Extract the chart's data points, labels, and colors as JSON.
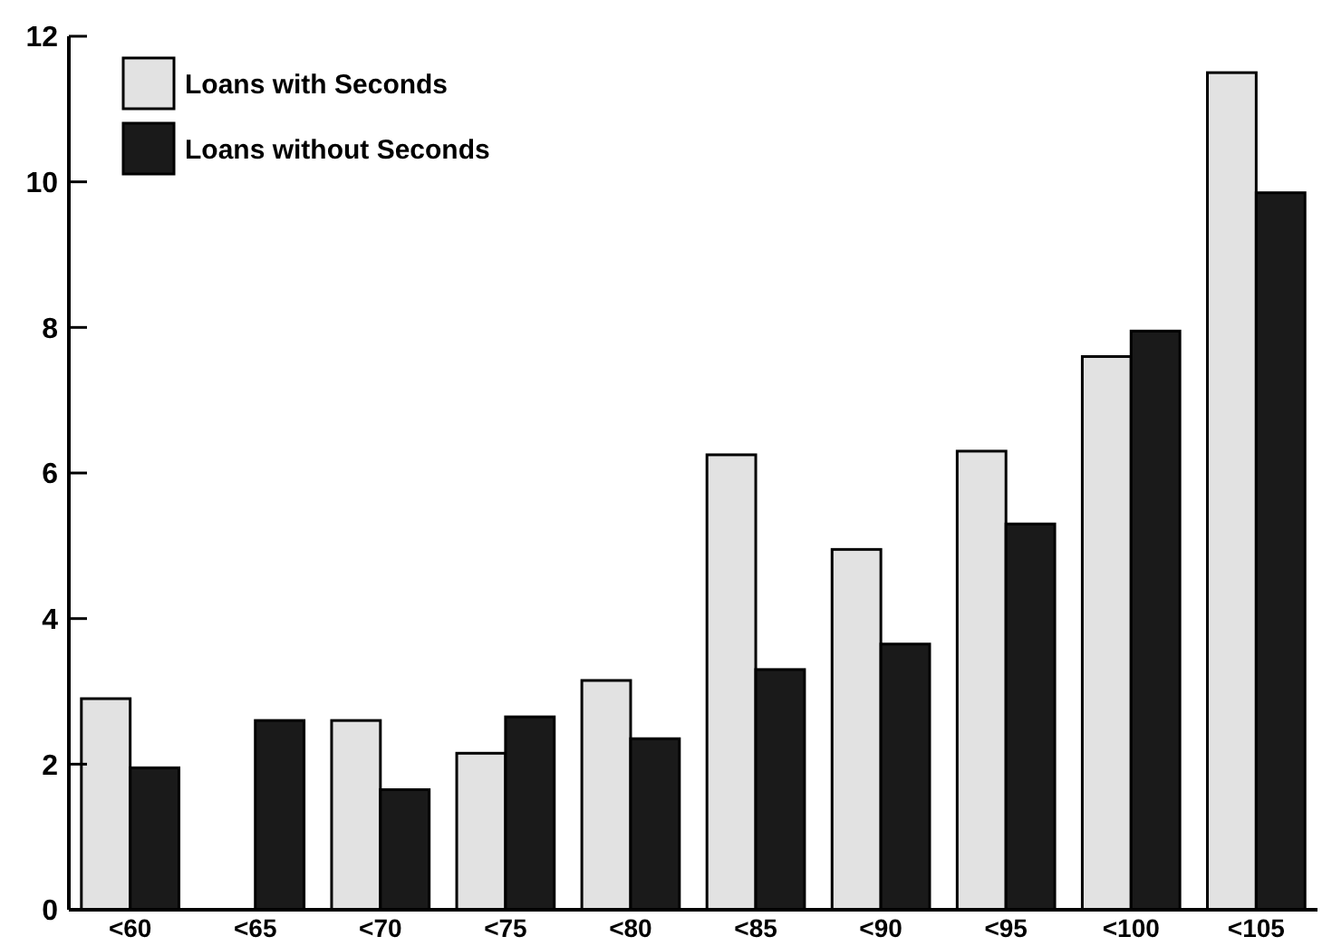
{
  "chart_data": {
    "type": "bar",
    "categories": [
      "<60",
      "<65",
      "<70",
      "<75",
      "<80",
      "<85",
      "<90",
      "<95",
      "<100",
      "<105"
    ],
    "series": [
      {
        "name": "Loans with Seconds",
        "color": "#e2e2e2",
        "values": [
          2.9,
          null,
          2.6,
          2.15,
          3.15,
          6.25,
          4.95,
          6.3,
          7.6,
          11.5
        ]
      },
      {
        "name": "Loans without Seconds",
        "color": "#1a1a1a",
        "values": [
          1.95,
          2.6,
          1.65,
          2.65,
          2.35,
          3.3,
          3.65,
          5.3,
          7.95,
          9.85
        ]
      }
    ],
    "ylim": [
      0,
      12
    ],
    "yticks": [
      0,
      2,
      4,
      6,
      8,
      10,
      12
    ],
    "legend": "top left"
  }
}
